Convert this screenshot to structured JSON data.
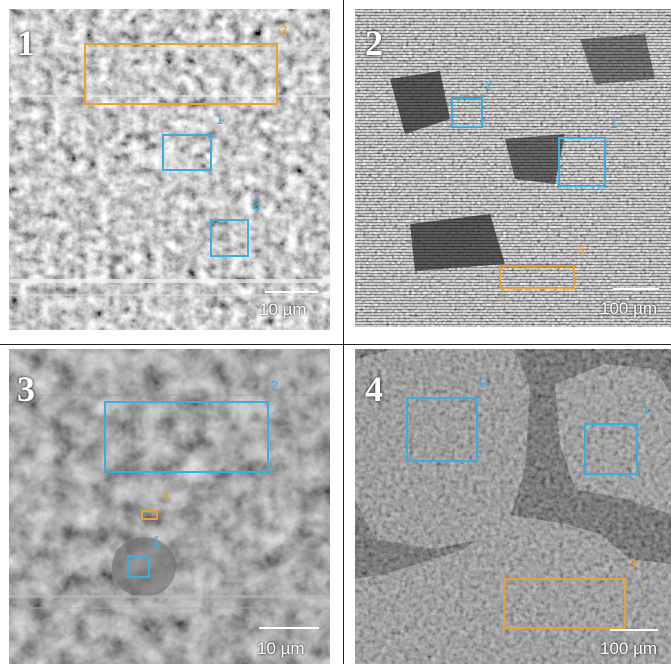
{
  "panels": [
    {
      "number": "1",
      "scale_label": "10 µm",
      "regions": [
        {
          "label": "1",
          "color": "#3aaee0"
        },
        {
          "label": "2",
          "color": "#3aaee0"
        },
        {
          "label": "3",
          "color": "#e8a231"
        }
      ]
    },
    {
      "number": "2",
      "scale_label": "100 µm",
      "regions": [
        {
          "label": "1",
          "color": "#3aaee0"
        },
        {
          "label": "2",
          "color": "#3aaee0"
        },
        {
          "label": "3",
          "color": "#e8a231"
        }
      ]
    },
    {
      "number": "3",
      "scale_label": "10 µm",
      "regions": [
        {
          "label": "1",
          "color": "#3aaee0"
        },
        {
          "label": "2",
          "color": "#3aaee0"
        },
        {
          "label": "3",
          "color": "#e8a231"
        }
      ]
    },
    {
      "number": "4",
      "scale_label": "100 µm",
      "regions": [
        {
          "label": "1",
          "color": "#3aaee0"
        },
        {
          "label": "2",
          "color": "#3aaee0"
        },
        {
          "label": "3",
          "color": "#e8a231"
        }
      ]
    }
  ]
}
